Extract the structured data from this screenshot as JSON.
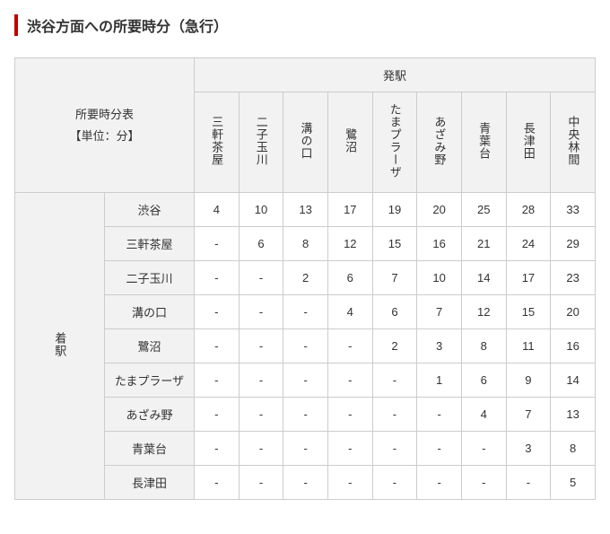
{
  "title": "渋谷方面への所要時分（急行）",
  "cornerLabelLine1": "所要時分表",
  "cornerLabelLine2": "【単位：分】",
  "depHeader": "発駅",
  "arrHeader": "着駅",
  "departureStations": [
    "三軒茶屋",
    "二子玉川",
    "溝の口",
    "鷺沼",
    "たまプラーザ",
    "あざみ野",
    "青葉台",
    "長津田",
    "中央林間"
  ],
  "arrivalStations": [
    "渋谷",
    "三軒茶屋",
    "二子玉川",
    "溝の口",
    "鷺沼",
    "たまプラーザ",
    "あざみ野",
    "青葉台",
    "長津田"
  ],
  "matrix": [
    [
      4,
      10,
      13,
      17,
      19,
      20,
      25,
      28,
      33
    ],
    [
      "-",
      6,
      8,
      12,
      15,
      16,
      21,
      24,
      29
    ],
    [
      "-",
      "-",
      2,
      6,
      7,
      10,
      14,
      17,
      23
    ],
    [
      "-",
      "-",
      "-",
      4,
      6,
      7,
      12,
      15,
      20
    ],
    [
      "-",
      "-",
      "-",
      "-",
      2,
      3,
      8,
      11,
      16
    ],
    [
      "-",
      "-",
      "-",
      "-",
      "-",
      1,
      6,
      9,
      14
    ],
    [
      "-",
      "-",
      "-",
      "-",
      "-",
      "-",
      4,
      7,
      13
    ],
    [
      "-",
      "-",
      "-",
      "-",
      "-",
      "-",
      "-",
      3,
      8
    ],
    [
      "-",
      "-",
      "-",
      "-",
      "-",
      "-",
      "-",
      "-",
      5
    ]
  ],
  "colors": {
    "accentBar": "#c00000",
    "border": "#cccccc",
    "headerBg": "#f2f2f2",
    "cellBg": "#ffffff",
    "text": "#333333"
  },
  "fontSizes": {
    "heading": 16,
    "table": 13
  }
}
